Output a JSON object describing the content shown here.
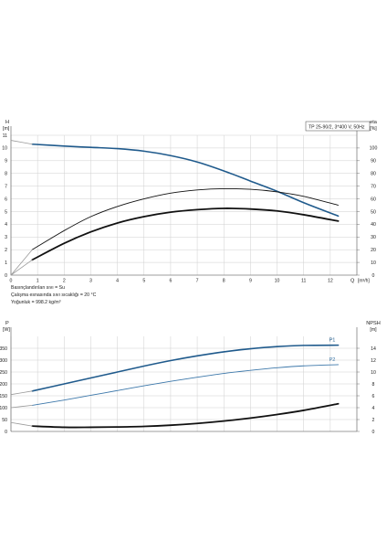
{
  "header_box": "TP 25-90/2, 3*400 V, 50Hz",
  "fluid_notes": [
    "Basınçlandırılan sıvı = Su",
    "Çalışma esnasında sıvı sıcaklığı = 20 °C",
    "Yoğunluk = 998.2 kg/m³"
  ],
  "colors": {
    "blue": "#1f5a8c",
    "blue_light": "#3d78aa",
    "black": "#111111",
    "grey": "#9a9a9a",
    "grid": "#cfcfcf"
  },
  "chart_data": [
    {
      "type": "line",
      "left_axis": {
        "label": "H",
        "unit": "[m]",
        "ylim": [
          0,
          11
        ],
        "ticks": [
          0,
          1,
          2,
          3,
          4,
          5,
          6,
          7,
          8,
          9,
          10,
          11
        ]
      },
      "right_axis": {
        "label": "eta",
        "unit": "[%]",
        "ylim": [
          0,
          110
        ],
        "ticks": [
          0,
          10,
          20,
          30,
          40,
          50,
          60,
          70,
          80,
          90,
          100
        ]
      },
      "x_axis": {
        "label": "Q",
        "unit": "[m³/h]",
        "xlim": [
          0,
          13
        ],
        "ticks": [
          0,
          1,
          2,
          3,
          4,
          5,
          6,
          7,
          8,
          9,
          10,
          11,
          12
        ]
      },
      "grid": true,
      "series": [
        {
          "axis": "left",
          "color": "blue",
          "width": 1.6,
          "x": [
            0.8,
            2,
            3,
            4,
            5,
            6,
            7,
            8,
            9,
            10,
            11,
            12.3
          ],
          "y": [
            10.3,
            10.15,
            10.05,
            9.95,
            9.75,
            9.4,
            8.9,
            8.2,
            7.4,
            6.6,
            5.7,
            4.65
          ]
        },
        {
          "axis": "left",
          "color": "grey",
          "width": 0.8,
          "x": [
            0,
            0.8
          ],
          "y": [
            10.6,
            10.3
          ]
        },
        {
          "axis": "right",
          "color": "black",
          "width": 0.9,
          "x": [
            0.8,
            2,
            3,
            4,
            5,
            6,
            7,
            8,
            9,
            10,
            11,
            12.3
          ],
          "y": [
            20,
            35,
            46,
            54,
            60,
            64.5,
            67,
            68,
            67.5,
            65.5,
            62,
            55
          ]
        },
        {
          "axis": "right",
          "color": "grey",
          "width": 0.8,
          "x": [
            0,
            0.4,
            0.8
          ],
          "y": [
            0,
            10,
            20
          ]
        },
        {
          "axis": "right",
          "color": "black",
          "width": 1.8,
          "x": [
            0.8,
            2,
            3,
            4,
            5,
            6,
            7,
            8,
            9,
            10,
            11,
            12.3
          ],
          "y": [
            12,
            25,
            34,
            41,
            46,
            49.5,
            51.5,
            52.5,
            52,
            50.5,
            47.5,
            42.5
          ]
        },
        {
          "axis": "right",
          "color": "grey",
          "width": 0.8,
          "x": [
            0,
            0.4,
            0.8
          ],
          "y": [
            0,
            6,
            12
          ]
        }
      ]
    },
    {
      "type": "line",
      "left_axis": {
        "label": "P",
        "unit": "[W]",
        "ylim": [
          0,
          400
        ],
        "ticks": [
          0,
          50,
          100,
          150,
          200,
          250,
          300,
          350
        ]
      },
      "right_axis": {
        "label": "NPSH",
        "unit": "[m]",
        "ylim": [
          0,
          16
        ],
        "ticks": [
          0,
          2,
          4,
          6,
          8,
          10,
          12,
          14
        ]
      },
      "x_axis": {
        "xlim": [
          0,
          13
        ],
        "ticks": [
          0,
          1,
          2,
          3,
          4,
          5,
          6,
          7,
          8,
          9,
          10,
          11,
          12
        ]
      },
      "grid": true,
      "series": [
        {
          "name": "P1",
          "axis": "left",
          "color": "blue",
          "width": 1.6,
          "x": [
            0.8,
            2,
            3,
            4,
            5,
            6,
            7,
            8,
            9,
            10,
            11,
            12.3
          ],
          "y": [
            170,
            200,
            225,
            250,
            275,
            298,
            318,
            335,
            348,
            357,
            362,
            363
          ]
        },
        {
          "axis": "left",
          "color": "grey",
          "width": 0.8,
          "x": [
            0,
            0.8
          ],
          "y": [
            155,
            170
          ]
        },
        {
          "name": "P2",
          "axis": "left",
          "color": "blue_light",
          "width": 0.9,
          "x": [
            0.8,
            2,
            3,
            4,
            5,
            6,
            7,
            8,
            9,
            10,
            11,
            12.3
          ],
          "y": [
            110,
            132,
            152,
            172,
            192,
            211,
            228,
            244,
            257,
            268,
            276,
            281
          ]
        },
        {
          "axis": "left",
          "color": "grey",
          "width": 0.8,
          "x": [
            0,
            0.8
          ],
          "y": [
            100,
            110
          ]
        },
        {
          "axis": "right",
          "color": "black",
          "width": 1.8,
          "x": [
            0.8,
            2,
            3,
            4,
            5,
            6,
            7,
            8,
            9,
            10,
            11,
            12.3
          ],
          "y": [
            0.9,
            0.7,
            0.7,
            0.75,
            0.85,
            1.05,
            1.35,
            1.75,
            2.25,
            2.85,
            3.55,
            4.65
          ]
        },
        {
          "axis": "right",
          "color": "grey",
          "width": 0.8,
          "x": [
            0,
            0.8
          ],
          "y": [
            1.5,
            0.9
          ]
        }
      ]
    }
  ]
}
